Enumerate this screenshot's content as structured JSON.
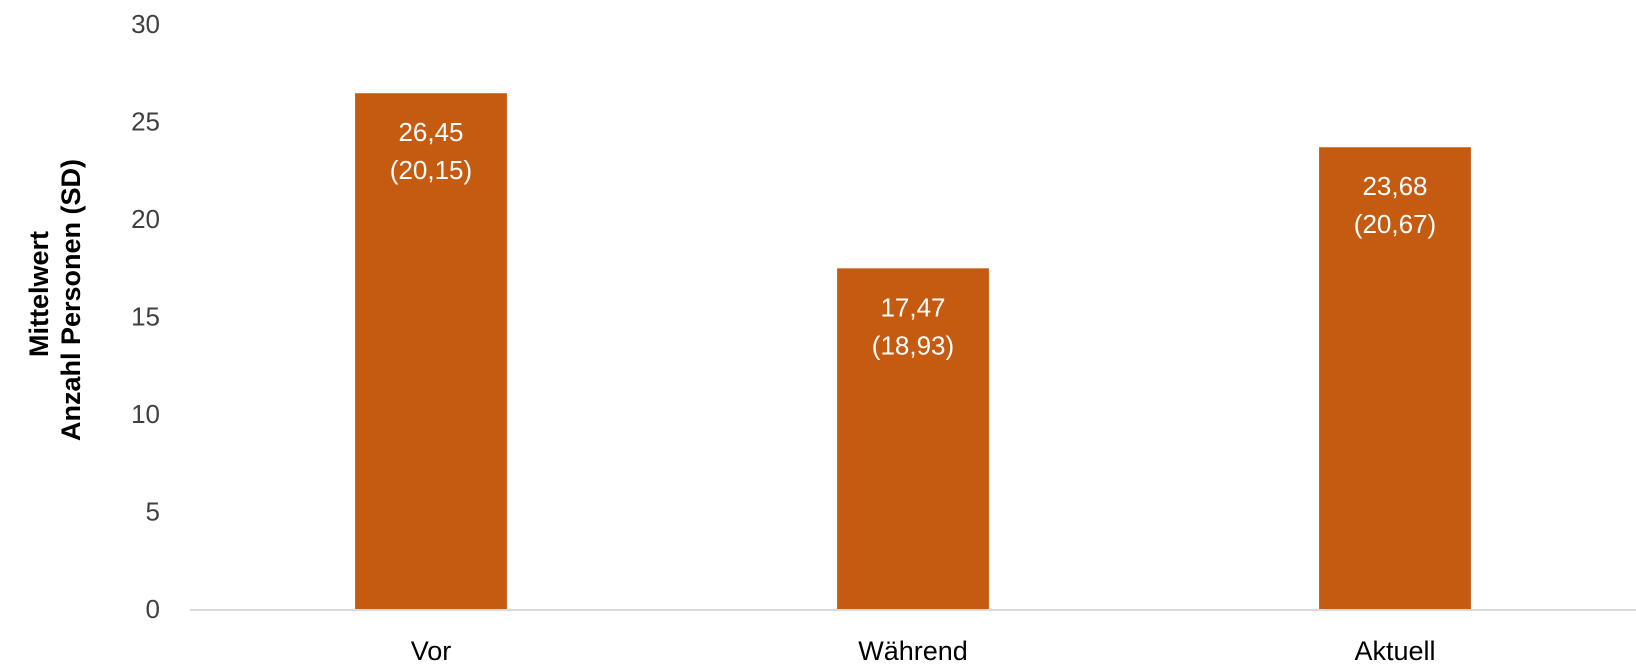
{
  "chart_data": {
    "type": "bar",
    "categories": [
      "Vor",
      "Während",
      "Aktuell"
    ],
    "values": [
      26.45,
      17.47,
      23.68
    ],
    "value_labels": [
      "26,45",
      "17,47",
      "23,68"
    ],
    "sd_labels": [
      "(20,15)",
      "(18,93)",
      "(20,67)"
    ],
    "ylabel_lines": [
      "Mittelwert",
      "Anzahl Personen (SD)"
    ],
    "ylim": [
      0,
      30
    ],
    "yticks": [
      0,
      5,
      10,
      15,
      20,
      25,
      30
    ],
    "grid": false,
    "colors": {
      "bar": "#C55A11",
      "axis": "#D9D9D9"
    }
  }
}
